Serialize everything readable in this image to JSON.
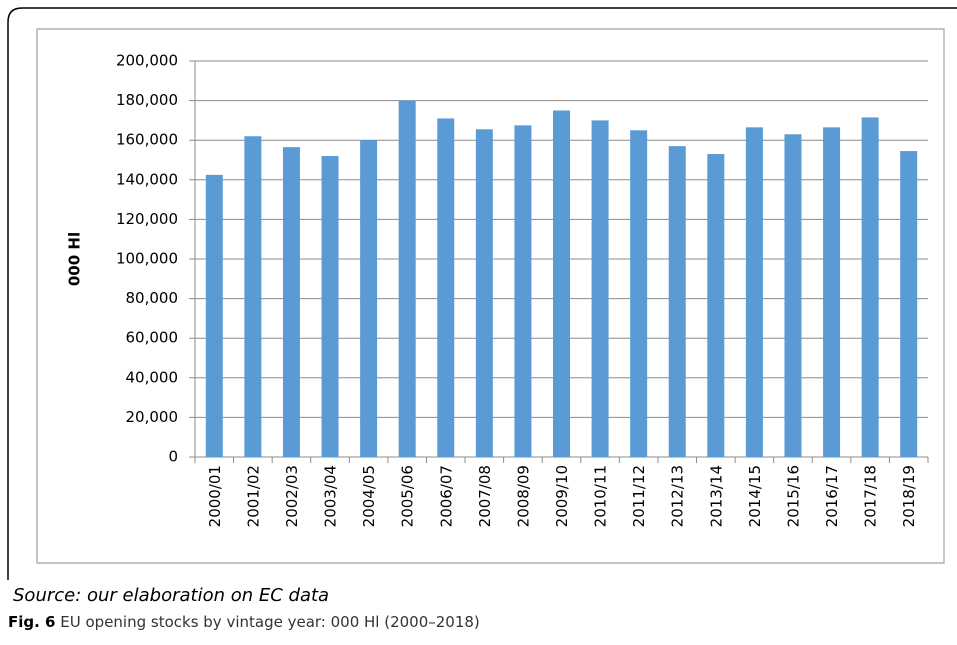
{
  "chart_data": {
    "type": "bar",
    "y_label": "000 Hl",
    "categories": [
      "2000/01",
      "2001/02",
      "2002/03",
      "2003/04",
      "2004/05",
      "2005/06",
      "2006/07",
      "2007/08",
      "2008/09",
      "2009/10",
      "2010/11",
      "2011/12",
      "2012/13",
      "2013/14",
      "2014/15",
      "2015/16",
      "2016/17",
      "2017/18",
      "2018/19"
    ],
    "values": [
      142500,
      162000,
      156500,
      152000,
      160000,
      180000,
      171000,
      165500,
      167500,
      175000,
      170000,
      165000,
      157000,
      153000,
      166500,
      163000,
      166500,
      171500,
      154500
    ],
    "color": "#5b9bd5",
    "ylim": [
      0,
      200000
    ],
    "yticks": [
      0,
      {
        "value": 20000,
        "label": "20,000"
      },
      {
        "value": 40000,
        "label": "40,000"
      },
      {
        "value": 60000,
        "label": "60,000"
      },
      {
        "value": 80000,
        "label": "80,000"
      },
      {
        "value": 100000,
        "label": "100,000"
      },
      {
        "value": 120000,
        "label": "120,000"
      },
      {
        "value": 140000,
        "label": "140,000"
      },
      {
        "value": 160000,
        "label": "160,000"
      },
      {
        "value": 180000,
        "label": "180,000"
      },
      {
        "value": 200000,
        "label": "200,000"
      }
    ],
    "grid": true,
    "source": "Source: our elaboration on EC data",
    "caption_label": "Fig. 6",
    "caption": "EU opening stocks by vintage year: 000 Hl (2000–2018)"
  }
}
